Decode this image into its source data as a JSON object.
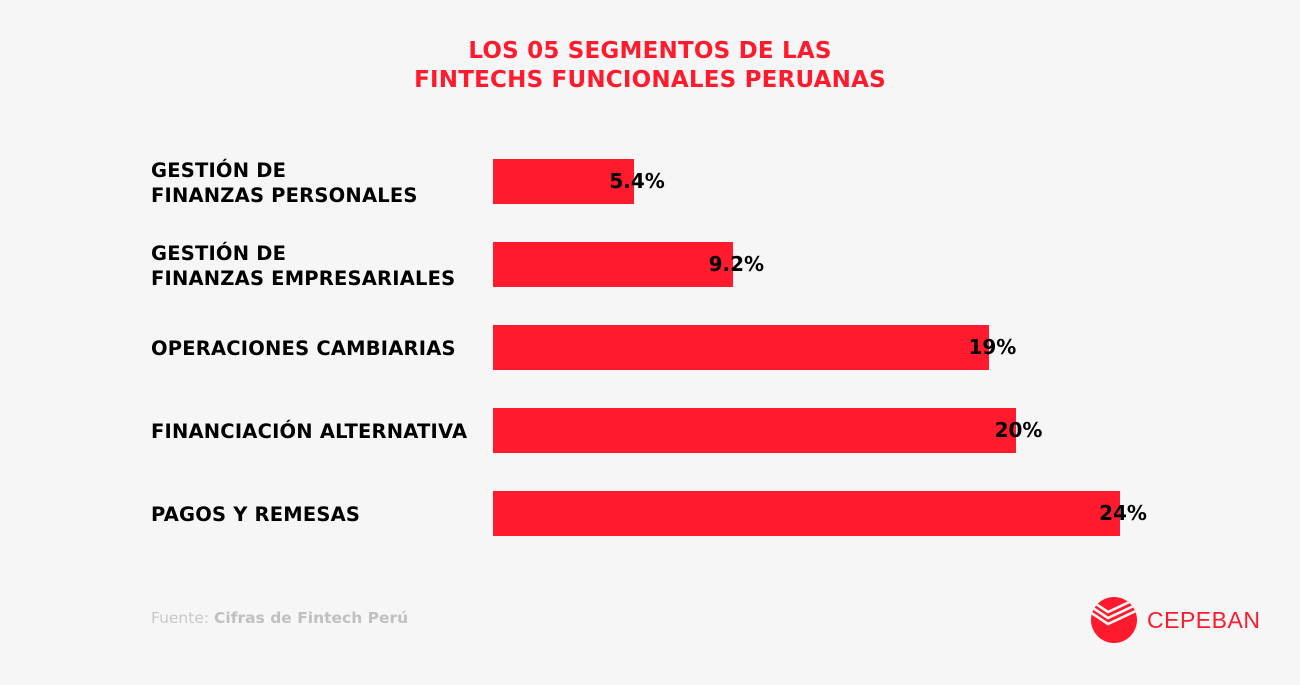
{
  "title": {
    "line1": "LOS 05 SEGMENTOS DE LAS",
    "line2": "FINTECHS FUNCIONALES PERUANAS"
  },
  "colors": {
    "background": "#f6f6f6",
    "accent": "#ff1a2d",
    "label": "#000000",
    "source": "#c8c8c8"
  },
  "chart_data": {
    "type": "bar",
    "orientation": "horizontal",
    "title": "LOS 05 SEGMENTOS DE LAS FINTECHS FUNCIONALES PERUANAS",
    "xlabel": "",
    "ylabel": "",
    "grid": false,
    "unit": "%",
    "categories": [
      [
        "GESTIÓN DE",
        "FINANZAS PERSONALES"
      ],
      [
        "GESTIÓN DE",
        "FINANZAS EMPRESARIALES"
      ],
      [
        "OPERACIONES CAMBIARIAS"
      ],
      [
        "FINANCIACIÓN ALTERNATIVA"
      ],
      [
        "PAGOS Y REMESAS"
      ]
    ],
    "values": [
      5.4,
      9.2,
      19,
      20,
      24
    ],
    "value_labels": [
      "5.4%",
      "9.2%",
      "19%",
      "20%",
      "24%"
    ],
    "xlim": [
      0,
      24
    ]
  },
  "footer": {
    "source_prefix": "Fuente:",
    "source_text": "Cifras de Fintech Perú",
    "logo_text": "CEPEBAN",
    "logo_icon": "cepeban-logo-icon"
  }
}
